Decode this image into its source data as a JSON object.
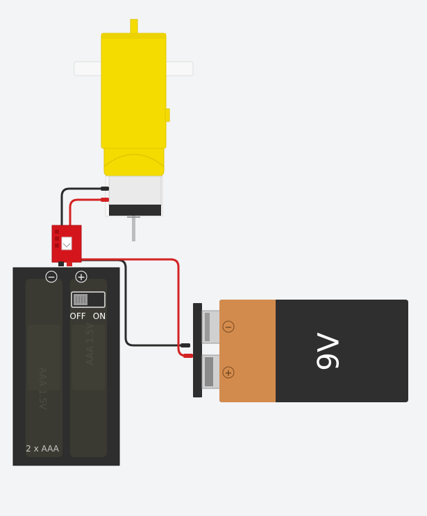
{
  "battery_pack": {
    "minus_symbol": "−",
    "plus_symbol": "+",
    "switch_off_label": "OFF",
    "switch_on_label": "ON",
    "count_label": "2 x AAA",
    "cell_label": "AAA 1.5V"
  },
  "battery_9v": {
    "voltage_label": "9V",
    "minus_symbol": "−",
    "plus_symbol": "+"
  },
  "colors": {
    "background": "#f3f4f6",
    "motor_yellow": "#f4dc00",
    "motor_yellow_dark": "#e2c600",
    "wire_red": "#d42222",
    "wire_black": "#2b2b2b",
    "battery_body": "#2f2f2f",
    "battery_copper": "#d38b4d",
    "connector_red": "#d4161c"
  }
}
